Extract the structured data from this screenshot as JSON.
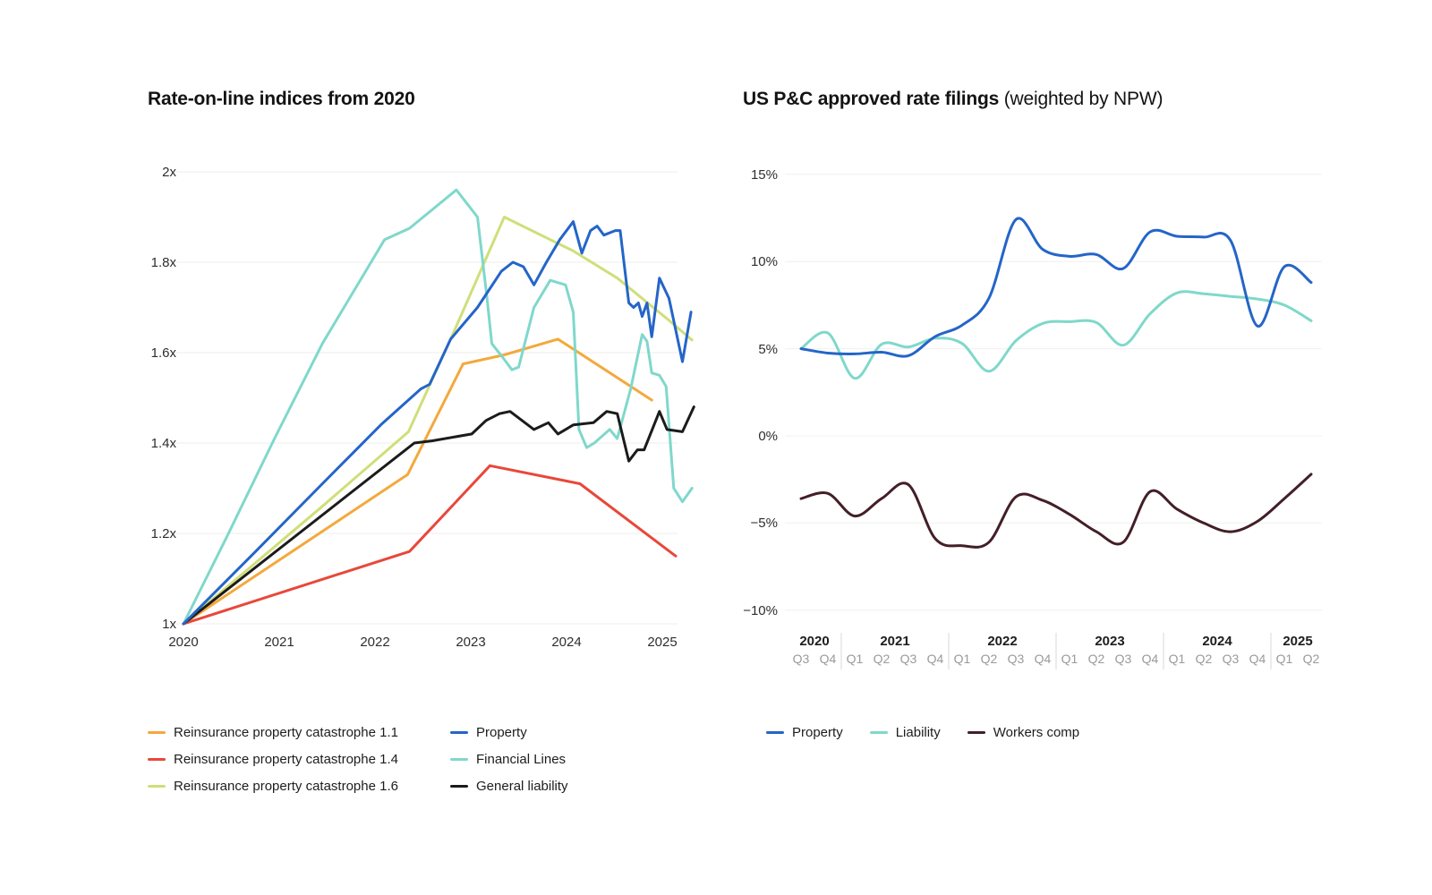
{
  "chart_data": [
    {
      "type": "line",
      "title": "Rate-on-line indices from 2020",
      "grid": "horizontal",
      "legend_position": "bottom",
      "y_axis": {
        "tick_labels": [
          "2x",
          "1.8x",
          "1.6x",
          "1.4x",
          "1.2x",
          "1x"
        ],
        "tick_values": [
          2,
          1.8,
          1.6,
          1.4,
          1.2,
          1
        ],
        "range": [
          1,
          2
        ]
      },
      "x_axis": {
        "unit": "year",
        "tick_labels": [
          "2020",
          "2021",
          "2022",
          "2023",
          "2024",
          "2025"
        ],
        "tick_values": [
          2020,
          2021,
          2022,
          2023,
          2024,
          2025
        ],
        "range": [
          2020,
          2025.35
        ]
      },
      "series": [
        {
          "name": "Reinsurance property catastrophe 1.1",
          "color": "#F3A93C",
          "points": [
            [
              2020,
              1.0
            ],
            [
              2022.34,
              1.33
            ],
            [
              2022.92,
              1.575
            ],
            [
              2023.35,
              1.595
            ],
            [
              2023.91,
              1.63
            ],
            [
              2024.89,
              1.495
            ]
          ]
        },
        {
          "name": "Reinsurance property catastrophe 1.4",
          "color": "#E8483A",
          "points": [
            [
              2020,
              1.0
            ],
            [
              2022.36,
              1.16
            ],
            [
              2023.2,
              1.35
            ],
            [
              2024.14,
              1.31
            ],
            [
              2025.14,
              1.15
            ]
          ]
        },
        {
          "name": "Reinsurance property catastrophe 1.6",
          "color": "#CFDF79",
          "points": [
            [
              2020,
              1.0
            ],
            [
              2021.45,
              1.26
            ],
            [
              2022.35,
              1.425
            ],
            [
              2022.79,
              1.63
            ],
            [
              2023.35,
              1.9
            ],
            [
              2024.07,
              1.825
            ],
            [
              2024.53,
              1.765
            ],
            [
              2025.05,
              1.675
            ],
            [
              2025.31,
              1.628
            ]
          ]
        },
        {
          "name": "Property",
          "color": "#2465C8",
          "points": [
            [
              2020,
              1.0
            ],
            [
              2020.73,
              1.155
            ],
            [
              2021.45,
              1.31
            ],
            [
              2022.06,
              1.44
            ],
            [
              2022.48,
              1.52
            ],
            [
              2022.57,
              1.53
            ],
            [
              2022.79,
              1.63
            ],
            [
              2023.07,
              1.7
            ],
            [
              2023.32,
              1.78
            ],
            [
              2023.44,
              1.8
            ],
            [
              2023.55,
              1.79
            ],
            [
              2023.66,
              1.75
            ],
            [
              2023.79,
              1.8
            ],
            [
              2023.93,
              1.85
            ],
            [
              2024.07,
              1.89
            ],
            [
              2024.16,
              1.82
            ],
            [
              2024.25,
              1.87
            ],
            [
              2024.32,
              1.88
            ],
            [
              2024.39,
              1.86
            ],
            [
              2024.51,
              1.87
            ],
            [
              2024.56,
              1.87
            ],
            [
              2024.65,
              1.71
            ],
            [
              2024.7,
              1.7
            ],
            [
              2024.75,
              1.71
            ],
            [
              2024.79,
              1.68
            ],
            [
              2024.84,
              1.71
            ],
            [
              2024.89,
              1.635
            ],
            [
              2024.97,
              1.765
            ],
            [
              2025.07,
              1.72
            ],
            [
              2025.21,
              1.58
            ],
            [
              2025.3,
              1.69
            ]
          ]
        },
        {
          "name": "Financial Lines",
          "color": "#7FD8CB",
          "points": [
            [
              2020,
              1.0
            ],
            [
              2020.47,
              1.2
            ],
            [
              2020.95,
              1.41
            ],
            [
              2021.45,
              1.62
            ],
            [
              2022.1,
              1.85
            ],
            [
              2022.36,
              1.875
            ],
            [
              2022.85,
              1.96
            ],
            [
              2023.07,
              1.9
            ],
            [
              2023.17,
              1.72
            ],
            [
              2023.22,
              1.62
            ],
            [
              2023.35,
              1.585
            ],
            [
              2023.43,
              1.562
            ],
            [
              2023.5,
              1.568
            ],
            [
              2023.66,
              1.7
            ],
            [
              2023.83,
              1.76
            ],
            [
              2023.99,
              1.75
            ],
            [
              2024.07,
              1.69
            ],
            [
              2024.13,
              1.43
            ],
            [
              2024.21,
              1.39
            ],
            [
              2024.29,
              1.4
            ],
            [
              2024.45,
              1.43
            ],
            [
              2024.53,
              1.41
            ],
            [
              2024.67,
              1.52
            ],
            [
              2024.79,
              1.64
            ],
            [
              2024.84,
              1.625
            ],
            [
              2024.89,
              1.555
            ],
            [
              2024.97,
              1.55
            ],
            [
              2025.04,
              1.525
            ],
            [
              2025.12,
              1.3
            ],
            [
              2025.21,
              1.27
            ],
            [
              2025.31,
              1.3
            ]
          ]
        },
        {
          "name": "General liability",
          "color": "#1B1B1B",
          "points": [
            [
              2020,
              1.0
            ],
            [
              2022.41,
              1.4
            ],
            [
              2022.6,
              1.405
            ],
            [
              2023.01,
              1.42
            ],
            [
              2023.16,
              1.45
            ],
            [
              2023.3,
              1.465
            ],
            [
              2023.41,
              1.47
            ],
            [
              2023.66,
              1.43
            ],
            [
              2023.81,
              1.445
            ],
            [
              2023.91,
              1.42
            ],
            [
              2024.07,
              1.44
            ],
            [
              2024.28,
              1.445
            ],
            [
              2024.42,
              1.47
            ],
            [
              2024.53,
              1.465
            ],
            [
              2024.65,
              1.36
            ],
            [
              2024.74,
              1.385
            ],
            [
              2024.81,
              1.385
            ],
            [
              2024.97,
              1.47
            ],
            [
              2025.05,
              1.43
            ],
            [
              2025.21,
              1.425
            ],
            [
              2025.33,
              1.48
            ]
          ]
        }
      ]
    },
    {
      "type": "line",
      "title": "US P&C approved rate filings",
      "title_suffix": " (weighted by NPW)",
      "grid": "horizontal",
      "legend_position": "bottom",
      "y_axis": {
        "tick_labels": [
          "15%",
          "10%",
          "5%",
          "0%",
          "−5%",
          "−10%"
        ],
        "tick_values": [
          15,
          10,
          5,
          0,
          -5,
          -10
        ],
        "range": [
          -10,
          15
        ]
      },
      "x_axis": {
        "unit": "quarter",
        "years": [
          {
            "label": "2020",
            "quarters": [
              "Q3",
              "Q4"
            ]
          },
          {
            "label": "2021",
            "quarters": [
              "Q1",
              "Q2",
              "Q3",
              "Q4"
            ]
          },
          {
            "label": "2022",
            "quarters": [
              "Q1",
              "Q2",
              "Q3",
              "Q4"
            ]
          },
          {
            "label": "2023",
            "quarters": [
              "Q1",
              "Q2",
              "Q3",
              "Q4"
            ]
          },
          {
            "label": "2024",
            "quarters": [
              "Q1",
              "Q2",
              "Q3",
              "Q4"
            ]
          },
          {
            "label": "2025",
            "quarters": [
              "Q1",
              "Q2"
            ]
          }
        ]
      },
      "series": [
        {
          "name": "Property",
          "color": "#2465C8",
          "values": [
            5.0,
            4.75,
            4.7,
            4.8,
            4.6,
            5.7,
            6.35,
            7.9,
            12.4,
            10.7,
            10.3,
            10.4,
            9.6,
            11.7,
            11.45,
            11.4,
            11.2,
            6.3,
            9.7,
            8.8
          ]
        },
        {
          "name": "Liability",
          "color": "#7FD8CB",
          "values": [
            5.0,
            5.9,
            3.3,
            5.25,
            5.1,
            5.6,
            5.3,
            3.7,
            5.45,
            6.45,
            6.55,
            6.5,
            5.2,
            7.0,
            8.2,
            8.15,
            8.0,
            7.85,
            7.5,
            6.6
          ]
        },
        {
          "name": "Workers comp",
          "color": "#431F27",
          "values": [
            -3.6,
            -3.3,
            -4.6,
            -3.6,
            -2.8,
            -5.9,
            -6.3,
            -6.1,
            -3.5,
            -3.7,
            -4.5,
            -5.5,
            -6.1,
            -3.2,
            -4.2,
            -5.0,
            -5.5,
            -4.9,
            -3.6,
            -2.2
          ]
        }
      ]
    }
  ]
}
